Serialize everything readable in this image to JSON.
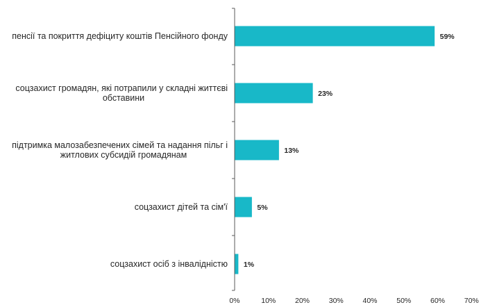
{
  "chart_data": {
    "type": "bar",
    "orientation": "horizontal",
    "categories": [
      [
        "пенсії та покриття дефіциту коштів Пенсійного фонду"
      ],
      [
        "соцзахист громадян, які потрапили у складні життєві",
        "обставини"
      ],
      [
        "підтримка малозабезпечених сімей та надання пільг і",
        "житлових  субсидій громадянам"
      ],
      [
        "соцзахист дітей та сім'ї"
      ],
      [
        "соцзахист осіб з інвалідністю"
      ]
    ],
    "values": [
      59,
      23,
      13,
      5,
      1
    ],
    "value_labels": [
      "59%",
      "23%",
      "13%",
      "5%",
      "1%"
    ],
    "xlim": [
      0,
      70
    ],
    "x_ticks": [
      0,
      10,
      20,
      30,
      40,
      50,
      60,
      70
    ],
    "x_tick_labels": [
      "0%",
      "10%",
      "20%",
      "30%",
      "40%",
      "50%",
      "60%",
      "70%"
    ],
    "grid": false,
    "bar_color": "#18B8C8",
    "text_color": "#262626",
    "axis_color": "#595959"
  }
}
